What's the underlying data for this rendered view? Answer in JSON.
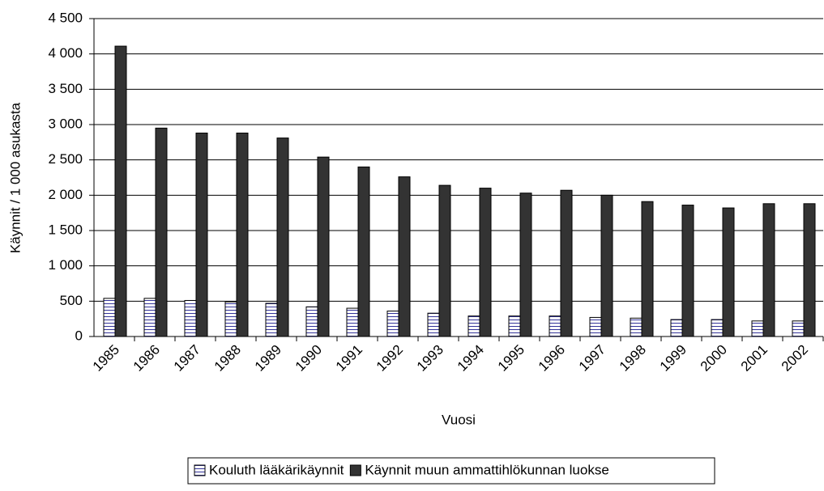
{
  "chart_data": {
    "type": "bar",
    "x_label": "Vuosi",
    "y_label": "Käynnit / 1 000 asukasta",
    "categories": [
      "1985",
      "1986",
      "1987",
      "1988",
      "1989",
      "1990",
      "1991",
      "1992",
      "1993",
      "1994",
      "1995",
      "1996",
      "1997",
      "1998",
      "1999",
      "2000",
      "2001",
      "2002"
    ],
    "series": [
      {
        "name": "Kouluth lääkärikäynnit",
        "color": "#ffffff",
        "hatch": "horizontal",
        "values": [
          540,
          540,
          510,
          490,
          470,
          420,
          400,
          360,
          330,
          290,
          290,
          290,
          270,
          260,
          240,
          240,
          220,
          220
        ]
      },
      {
        "name": "Käynnit muun ammattihlökunnan luokse",
        "color": "#333333",
        "values": [
          4110,
          2950,
          2880,
          2880,
          2810,
          2540,
          2400,
          2260,
          2140,
          2100,
          2030,
          2070,
          2000,
          1910,
          1860,
          1820,
          1880,
          1880
        ]
      }
    ],
    "ylim": [
      0,
      4500
    ],
    "yticks": [
      0,
      500,
      {
        "value": 1000,
        "label": "1 000"
      },
      {
        "value": 1500,
        "label": "1 500"
      },
      {
        "value": 2000,
        "label": "2 000"
      },
      {
        "value": 2500,
        "label": "2 500"
      },
      {
        "value": 3000,
        "label": "3 000"
      },
      {
        "value": 3500,
        "label": "3 500"
      },
      {
        "value": 4000,
        "label": "4 000"
      },
      {
        "value": 4500,
        "label": "4 500"
      }
    ],
    "grid": true,
    "legend": "bottom"
  }
}
